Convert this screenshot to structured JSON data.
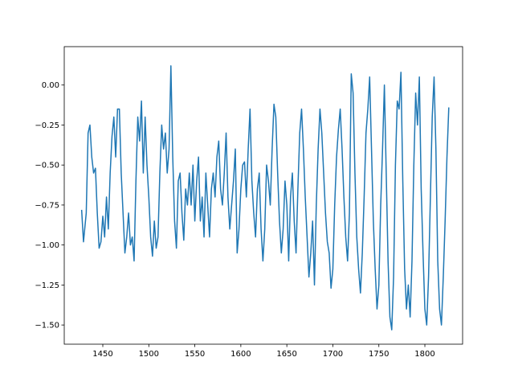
{
  "chart_data": {
    "type": "line",
    "x": [
      1427,
      1429,
      1432,
      1434,
      1436,
      1438,
      1440,
      1442,
      1444,
      1446,
      1448,
      1450,
      1452,
      1454,
      1456,
      1458,
      1460,
      1462,
      1464,
      1466,
      1468,
      1470,
      1472,
      1474,
      1476,
      1478,
      1480,
      1482,
      1484,
      1486,
      1488,
      1490,
      1492,
      1494,
      1496,
      1498,
      1500,
      1502,
      1504,
      1506,
      1508,
      1510,
      1512,
      1514,
      1516,
      1518,
      1520,
      1522,
      1524,
      1526,
      1528,
      1530,
      1532,
      1534,
      1536,
      1538,
      1540,
      1542,
      1544,
      1546,
      1548,
      1550,
      1552,
      1554,
      1556,
      1558,
      1560,
      1562,
      1564,
      1566,
      1568,
      1570,
      1572,
      1574,
      1576,
      1578,
      1580,
      1582,
      1584,
      1586,
      1588,
      1590,
      1592,
      1594,
      1596,
      1598,
      1600,
      1602,
      1604,
      1606,
      1608,
      1610,
      1612,
      1614,
      1616,
      1618,
      1620,
      1622,
      1624,
      1626,
      1628,
      1630,
      1632,
      1634,
      1636,
      1638,
      1640,
      1642,
      1644,
      1646,
      1648,
      1650,
      1652,
      1654,
      1656,
      1658,
      1660,
      1662,
      1664,
      1666,
      1668,
      1670,
      1672,
      1674,
      1676,
      1678,
      1680,
      1682,
      1684,
      1686,
      1688,
      1690,
      1692,
      1694,
      1696,
      1698,
      1700,
      1702,
      1704,
      1706,
      1708,
      1710,
      1712,
      1714,
      1716,
      1718,
      1720,
      1722,
      1724,
      1726,
      1728,
      1730,
      1732,
      1734,
      1736,
      1738,
      1740,
      1742,
      1744,
      1746,
      1748,
      1750,
      1752,
      1754,
      1756,
      1758,
      1760,
      1762,
      1764,
      1766,
      1768,
      1770,
      1772,
      1774,
      1776,
      1778,
      1780,
      1782,
      1784,
      1786,
      1788,
      1790,
      1792,
      1794,
      1796,
      1798,
      1800,
      1802,
      1804,
      1806,
      1808,
      1810,
      1812,
      1814,
      1816,
      1818,
      1820,
      1822,
      1824,
      1826
    ],
    "series": [
      {
        "color": "#1f77b4",
        "values": [
          -0.78,
          -0.98,
          -0.8,
          -0.3,
          -0.25,
          -0.45,
          -0.55,
          -0.52,
          -0.8,
          -1.02,
          -0.98,
          -0.82,
          -0.95,
          -0.7,
          -0.9,
          -0.55,
          -0.32,
          -0.2,
          -0.45,
          -0.15,
          -0.15,
          -0.55,
          -0.8,
          -1.05,
          -0.95,
          -0.8,
          -1.0,
          -0.95,
          -1.1,
          -0.6,
          -0.2,
          -0.35,
          -0.1,
          -0.55,
          -0.2,
          -0.5,
          -0.7,
          -0.95,
          -1.07,
          -0.85,
          -1.02,
          -0.95,
          -0.55,
          -0.25,
          -0.4,
          -0.3,
          -0.55,
          -0.4,
          0.12,
          -0.45,
          -0.85,
          -1.02,
          -0.6,
          -0.55,
          -0.8,
          -0.97,
          -0.65,
          -0.75,
          -0.55,
          -0.75,
          -0.5,
          -0.85,
          -0.6,
          -0.45,
          -0.85,
          -0.7,
          -0.95,
          -0.55,
          -0.75,
          -0.95,
          -0.65,
          -0.55,
          -0.7,
          -0.45,
          -0.35,
          -0.65,
          -0.75,
          -0.55,
          -0.3,
          -0.7,
          -0.9,
          -0.75,
          -0.6,
          -0.4,
          -1.05,
          -0.9,
          -0.65,
          -0.5,
          -0.48,
          -0.7,
          -0.4,
          -0.15,
          -0.6,
          -0.8,
          -0.95,
          -0.65,
          -0.55,
          -0.9,
          -1.1,
          -0.9,
          -0.5,
          -0.6,
          -0.75,
          -0.4,
          -0.12,
          -0.2,
          -0.55,
          -0.85,
          -1.05,
          -0.9,
          -0.6,
          -0.75,
          -1.1,
          -0.7,
          -0.55,
          -0.85,
          -1.05,
          -0.65,
          -0.3,
          -0.15,
          -0.4,
          -0.7,
          -0.95,
          -1.2,
          -1.05,
          -0.85,
          -1.25,
          -0.75,
          -0.4,
          -0.15,
          -0.3,
          -0.55,
          -0.8,
          -0.98,
          -1.05,
          -1.27,
          -1.15,
          -0.75,
          -0.45,
          -0.28,
          -0.15,
          -0.4,
          -0.7,
          -0.95,
          -1.1,
          -0.8,
          0.07,
          -0.05,
          -0.55,
          -0.95,
          -1.15,
          -1.3,
          -1.05,
          -0.7,
          -0.3,
          -0.15,
          0.05,
          -0.4,
          -0.85,
          -1.15,
          -1.4,
          -1.25,
          -0.75,
          -0.4,
          0.0,
          -0.55,
          -1.1,
          -1.45,
          -1.53,
          -1.2,
          -0.5,
          -0.1,
          -0.15,
          0.08,
          -0.6,
          -1.15,
          -1.4,
          -1.25,
          -1.45,
          -1.1,
          -0.5,
          -0.05,
          -0.25,
          0.05,
          -0.65,
          -1.05,
          -1.4,
          -1.5,
          -1.2,
          -0.7,
          -0.2,
          0.05,
          -0.4,
          -1.1,
          -1.4,
          -1.5,
          -1.2,
          -0.85,
          -0.45,
          -0.14
        ]
      }
    ],
    "xlim": [
      1408.1,
      1841
    ],
    "ylim": [
      -1.62,
      0.24
    ],
    "xticks": [
      1450,
      1500,
      1550,
      1600,
      1650,
      1700,
      1750,
      1800
    ],
    "yticks": [
      {
        "value": 0,
        "label": "0.00"
      },
      {
        "value": -0.25,
        "label": "−0.25"
      },
      {
        "value": -0.5,
        "label": "−0.50"
      },
      {
        "value": -0.75,
        "label": "−0.75"
      },
      {
        "value": -1,
        "label": "−1.00"
      },
      {
        "value": -1.25,
        "label": "−1.25"
      },
      {
        "value": -1.5,
        "label": "−1.50"
      }
    ]
  }
}
